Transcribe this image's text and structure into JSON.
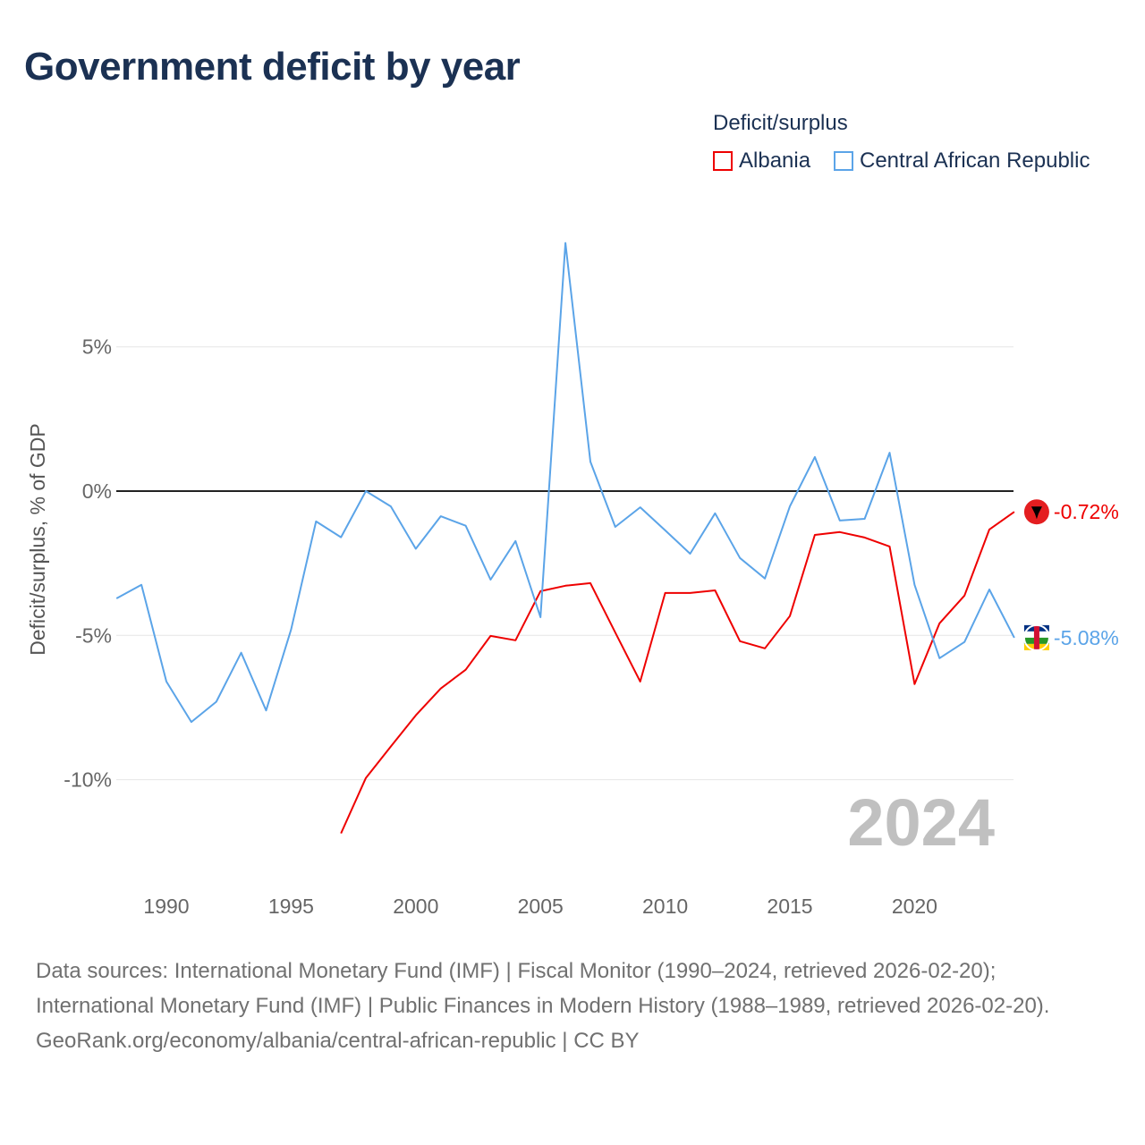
{
  "title": "Government deficit by year",
  "legend": {
    "title": "Deficit/surplus",
    "items": [
      {
        "label": "Albania",
        "color": "#ee0000"
      },
      {
        "label": "Central African Republic",
        "color": "#5ba4e8"
      }
    ]
  },
  "year_watermark": "2024",
  "footer": {
    "line1": "Data sources: International Monetary Fund (IMF) | Fiscal Monitor (1990–2024, retrieved 2026-02-20); International Monetary Fund (IMF) | Public Finances in Modern History (1988–1989, retrieved 2026-02-20).",
    "line2": "GeoRank.org/economy/albania/central-african-republic | CC BY"
  },
  "chart_data": {
    "type": "line",
    "title": "Government deficit by year",
    "xlabel": "",
    "ylabel": "Deficit/surplus, % of GDP",
    "xlim": [
      1988,
      2024
    ],
    "ylim": [
      -12.5,
      9
    ],
    "x_ticks": [
      1990,
      1995,
      2000,
      2005,
      2010,
      2015,
      2020
    ],
    "x_tick_labels": [
      "1990",
      "1995",
      "2000",
      "2005",
      "2010",
      "2015",
      "2020"
    ],
    "y_ticks": [
      5,
      0,
      -5,
      -10
    ],
    "y_tick_labels": [
      "5%",
      "0%",
      "-5%",
      "-10%"
    ],
    "grid": true,
    "legend_position": "top-right",
    "series": [
      {
        "name": "Albania",
        "color": "#ee0000",
        "end_label": "-0.72%",
        "x": [
          1997,
          1998,
          1999,
          2000,
          2001,
          2002,
          2003,
          2004,
          2005,
          2006,
          2007,
          2008,
          2009,
          2010,
          2011,
          2012,
          2013,
          2014,
          2015,
          2016,
          2017,
          2018,
          2019,
          2020,
          2021,
          2022,
          2023,
          2024
        ],
        "values": [
          -11.86,
          -9.94,
          -8.85,
          -7.77,
          -6.84,
          -6.19,
          -5.02,
          -5.17,
          -3.47,
          -3.28,
          -3.19,
          -4.9,
          -6.6,
          -3.53,
          -3.53,
          -3.44,
          -5.2,
          -5.45,
          -4.33,
          -1.52,
          -1.42,
          -1.61,
          -1.92,
          -6.69,
          -4.58,
          -3.62,
          -1.33,
          -0.72
        ]
      },
      {
        "name": "Central African Republic",
        "color": "#5ba4e8",
        "end_label": "-5.08%",
        "x": [
          1988,
          1989,
          1990,
          1991,
          1992,
          1993,
          1994,
          1995,
          1996,
          1997,
          1998,
          1999,
          2000,
          2001,
          2002,
          2003,
          2004,
          2005,
          2006,
          2007,
          2008,
          2009,
          2010,
          2011,
          2012,
          2013,
          2014,
          2015,
          2016,
          2017,
          2018,
          2019,
          2020,
          2021,
          2022,
          2023,
          2024
        ],
        "values": [
          -3.72,
          -3.25,
          -6.6,
          -8.0,
          -7.3,
          -5.6,
          -7.6,
          -4.8,
          -1.05,
          -1.6,
          0.0,
          -0.53,
          -2.0,
          -0.87,
          -1.2,
          -3.07,
          -1.73,
          -4.37,
          8.6,
          1.02,
          -1.24,
          -0.56,
          -1.36,
          -2.17,
          -0.77,
          -2.32,
          -3.03,
          -0.53,
          1.18,
          -1.02,
          -0.96,
          1.33,
          -3.25,
          -5.79,
          -5.23,
          -3.41,
          -5.08
        ]
      }
    ]
  }
}
